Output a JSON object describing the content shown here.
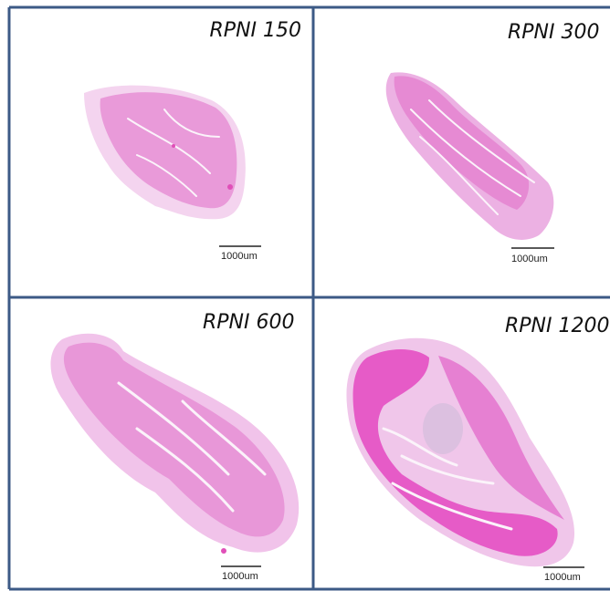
{
  "panels": [
    {
      "label": "RPNI 150",
      "scale_bar": "1000um"
    },
    {
      "label": "RPNI 300",
      "scale_bar": "1000um"
    },
    {
      "label": "RPNI 600",
      "scale_bar": "1000um"
    },
    {
      "label": "RPNI 1200",
      "scale_bar": "1000um"
    }
  ]
}
